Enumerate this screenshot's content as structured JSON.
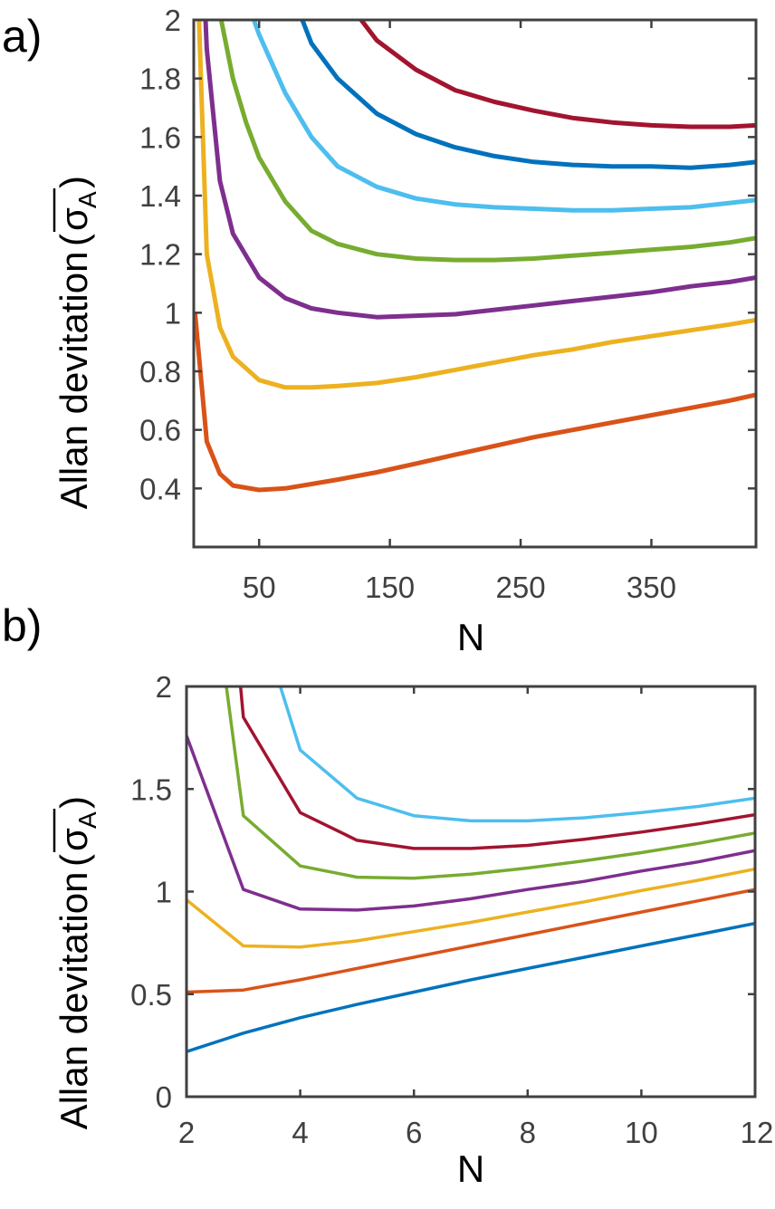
{
  "chart_data": [
    {
      "panel": "a)",
      "type": "line",
      "xlabel": "N",
      "ylabel": "Allan devitation",
      "ylabel_symbol": "σ",
      "ylabel_subscript": "A",
      "xlim": [
        0,
        430
      ],
      "ylim": [
        0.2,
        2.0
      ],
      "xticks": [
        50,
        150,
        250,
        350
      ],
      "xtick_labels": [
        "50",
        "150",
        "250",
        "350"
      ],
      "yticks": [
        0.4,
        0.6,
        0.8,
        1.0,
        1.2,
        1.4,
        1.6,
        1.8,
        2.0
      ],
      "ytick_labels": [
        "0.4",
        "0.6",
        "0.8",
        "1",
        "1.2",
        "1.4",
        "1.6",
        "1.8",
        "2"
      ],
      "grid": false,
      "series": [
        {
          "name": "orange",
          "color": "#D95319",
          "x": [
            1,
            10,
            20,
            30,
            50,
            70,
            90,
            110,
            140,
            170,
            200,
            230,
            260,
            290,
            320,
            350,
            380,
            410,
            430
          ],
          "y": [
            1.0,
            0.56,
            0.45,
            0.41,
            0.395,
            0.4,
            0.415,
            0.43,
            0.455,
            0.485,
            0.515,
            0.545,
            0.575,
            0.6,
            0.625,
            0.65,
            0.675,
            0.7,
            0.72
          ]
        },
        {
          "name": "yellow",
          "color": "#EDB120",
          "x": [
            4,
            10,
            20,
            30,
            50,
            70,
            90,
            110,
            140,
            170,
            200,
            230,
            260,
            290,
            320,
            350,
            380,
            410,
            430
          ],
          "y": [
            2.0,
            1.2,
            0.95,
            0.85,
            0.77,
            0.745,
            0.745,
            0.75,
            0.76,
            0.78,
            0.805,
            0.83,
            0.855,
            0.875,
            0.9,
            0.92,
            0.94,
            0.96,
            0.975
          ]
        },
        {
          "name": "purple",
          "color": "#7E2F8E",
          "x": [
            9,
            10,
            20,
            30,
            50,
            70,
            90,
            110,
            140,
            170,
            200,
            230,
            260,
            290,
            320,
            350,
            380,
            410,
            430
          ],
          "y": [
            2.0,
            1.9,
            1.45,
            1.27,
            1.12,
            1.05,
            1.015,
            1.0,
            0.985,
            0.99,
            0.995,
            1.01,
            1.025,
            1.04,
            1.055,
            1.07,
            1.09,
            1.105,
            1.12
          ]
        },
        {
          "name": "green",
          "color": "#77AC30",
          "x": [
            21,
            30,
            40,
            50,
            70,
            90,
            110,
            140,
            170,
            200,
            230,
            260,
            290,
            320,
            350,
            380,
            410,
            430
          ],
          "y": [
            2.0,
            1.8,
            1.65,
            1.53,
            1.38,
            1.28,
            1.235,
            1.2,
            1.185,
            1.18,
            1.18,
            1.185,
            1.195,
            1.205,
            1.215,
            1.225,
            1.24,
            1.255
          ]
        },
        {
          "name": "light-blue",
          "color": "#4DBEEE",
          "x": [
            46,
            50,
            70,
            90,
            110,
            140,
            170,
            200,
            230,
            260,
            290,
            320,
            350,
            380,
            410,
            430
          ],
          "y": [
            2.0,
            1.95,
            1.75,
            1.6,
            1.5,
            1.43,
            1.39,
            1.37,
            1.36,
            1.355,
            1.35,
            1.35,
            1.355,
            1.36,
            1.375,
            1.385
          ]
        },
        {
          "name": "blue",
          "color": "#0072BD",
          "x": [
            83,
            90,
            110,
            140,
            170,
            200,
            230,
            260,
            290,
            320,
            350,
            380,
            410,
            430
          ],
          "y": [
            2.0,
            1.92,
            1.8,
            1.68,
            1.61,
            1.565,
            1.535,
            1.515,
            1.505,
            1.5,
            1.5,
            1.495,
            1.505,
            1.515
          ]
        },
        {
          "name": "dark-red",
          "color": "#A2142F",
          "x": [
            128,
            140,
            170,
            200,
            230,
            260,
            290,
            320,
            350,
            380,
            410,
            430
          ],
          "y": [
            2.0,
            1.93,
            1.83,
            1.76,
            1.72,
            1.69,
            1.665,
            1.65,
            1.64,
            1.635,
            1.635,
            1.64
          ]
        }
      ]
    },
    {
      "panel": "b)",
      "type": "line",
      "xlabel": "N",
      "ylabel": "Allan devitation",
      "ylabel_symbol": "σ",
      "ylabel_subscript": "A",
      "xlim": [
        2,
        12
      ],
      "ylim": [
        0,
        2
      ],
      "xticks": [
        2,
        4,
        6,
        8,
        10,
        12
      ],
      "xtick_labels": [
        "2",
        "4",
        "6",
        "8",
        "10",
        "12"
      ],
      "yticks": [
        0,
        0.5,
        1,
        1.5,
        2
      ],
      "ytick_labels": [
        "0",
        "0.5",
        "1",
        "1.5",
        "2"
      ],
      "grid": false,
      "series": [
        {
          "name": "blue",
          "color": "#0072BD",
          "x": [
            2,
            3,
            4,
            5,
            6,
            7,
            8,
            9,
            10,
            11,
            12
          ],
          "y": [
            0.22,
            0.31,
            0.385,
            0.45,
            0.51,
            0.57,
            0.625,
            0.68,
            0.735,
            0.79,
            0.845
          ]
        },
        {
          "name": "orange",
          "color": "#D95319",
          "x": [
            2,
            3,
            4,
            5,
            6,
            7,
            8,
            9,
            10,
            11,
            12
          ],
          "y": [
            0.51,
            0.52,
            0.57,
            0.625,
            0.68,
            0.735,
            0.79,
            0.845,
            0.9,
            0.955,
            1.01
          ]
        },
        {
          "name": "yellow",
          "color": "#EDB120",
          "x": [
            2,
            3,
            4,
            5,
            6,
            7,
            8,
            9,
            10,
            11,
            12
          ],
          "y": [
            0.96,
            0.735,
            0.73,
            0.76,
            0.805,
            0.85,
            0.9,
            0.95,
            1.005,
            1.055,
            1.11
          ]
        },
        {
          "name": "purple",
          "color": "#7E2F8E",
          "x": [
            2,
            3,
            4,
            5,
            6,
            7,
            8,
            9,
            10,
            11,
            12
          ],
          "y": [
            1.76,
            1.01,
            0.915,
            0.91,
            0.93,
            0.965,
            1.01,
            1.05,
            1.1,
            1.145,
            1.2
          ]
        },
        {
          "name": "green",
          "color": "#77AC30",
          "x": [
            2.7,
            3,
            4,
            5,
            6,
            7,
            8,
            9,
            10,
            11,
            12
          ],
          "y": [
            2.0,
            1.37,
            1.125,
            1.07,
            1.065,
            1.085,
            1.115,
            1.15,
            1.19,
            1.235,
            1.285
          ]
        },
        {
          "name": "dark-red",
          "color": "#A2142F",
          "x": [
            2.95,
            3,
            4,
            5,
            6,
            7,
            8,
            9,
            10,
            11,
            12
          ],
          "y": [
            2.0,
            1.85,
            1.385,
            1.25,
            1.21,
            1.21,
            1.225,
            1.255,
            1.29,
            1.33,
            1.375
          ]
        },
        {
          "name": "light-blue",
          "color": "#4DBEEE",
          "x": [
            3.65,
            4,
            5,
            6,
            7,
            8,
            9,
            10,
            11,
            12
          ],
          "y": [
            2.0,
            1.69,
            1.455,
            1.37,
            1.345,
            1.345,
            1.36,
            1.385,
            1.415,
            1.455
          ]
        }
      ]
    }
  ]
}
